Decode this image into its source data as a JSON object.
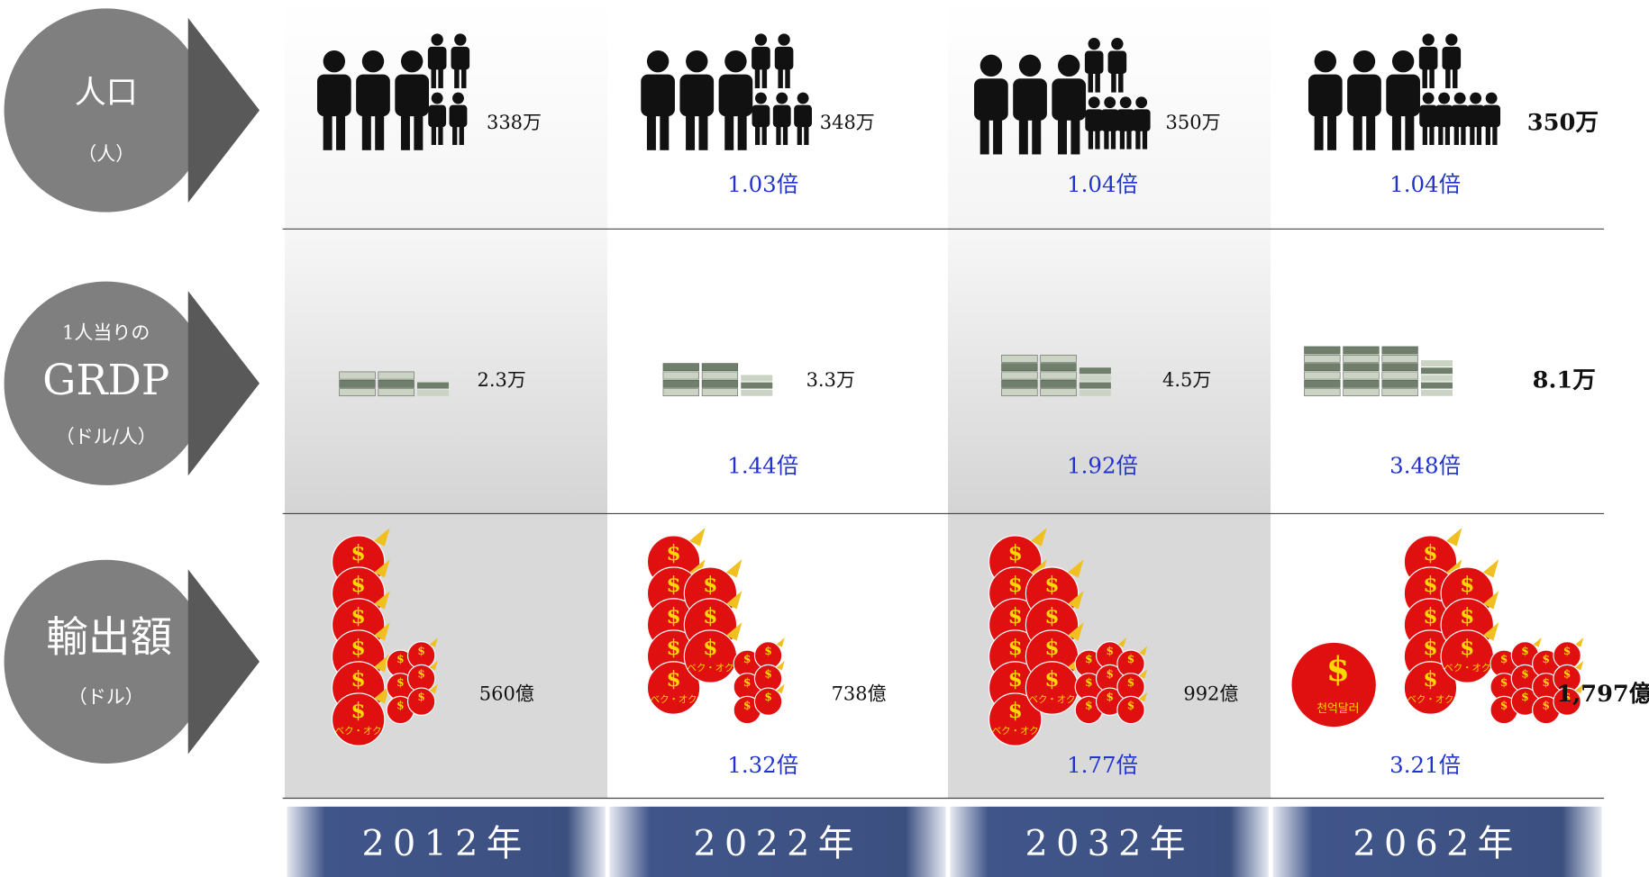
{
  "row_labels": [
    {
      "lines": [
        "人口"
      ],
      "unit": "（人）"
    },
    {
      "lines": [
        "1人当りの",
        "GRDP"
      ],
      "unit": "（ドル/人）"
    },
    {
      "lines": [
        "輸出額"
      ],
      "unit": "（ドル）"
    }
  ],
  "years": [
    "2012年",
    "2022年",
    "2032年",
    "2062年"
  ],
  "rows": [
    {
      "values": [
        "338万",
        "348万",
        "350万",
        "350万"
      ],
      "ratios": [
        "1.03倍",
        "1.04倍",
        "1.04倍"
      ]
    },
    {
      "values": [
        "2.3万",
        "3.3万",
        "4.5万",
        "8.1万"
      ],
      "ratios": [
        "1.44倍",
        "1.92倍",
        "3.48倍"
      ]
    },
    {
      "values": [
        "560億",
        "738億",
        "992億",
        "1,797億"
      ],
      "ratios": [
        "1.32倍",
        "1.77倍",
        "3.21倍"
      ]
    }
  ],
  "icons": {
    "bag_label": "ベク・オク",
    "big_bag_label": "천억달러"
  }
}
